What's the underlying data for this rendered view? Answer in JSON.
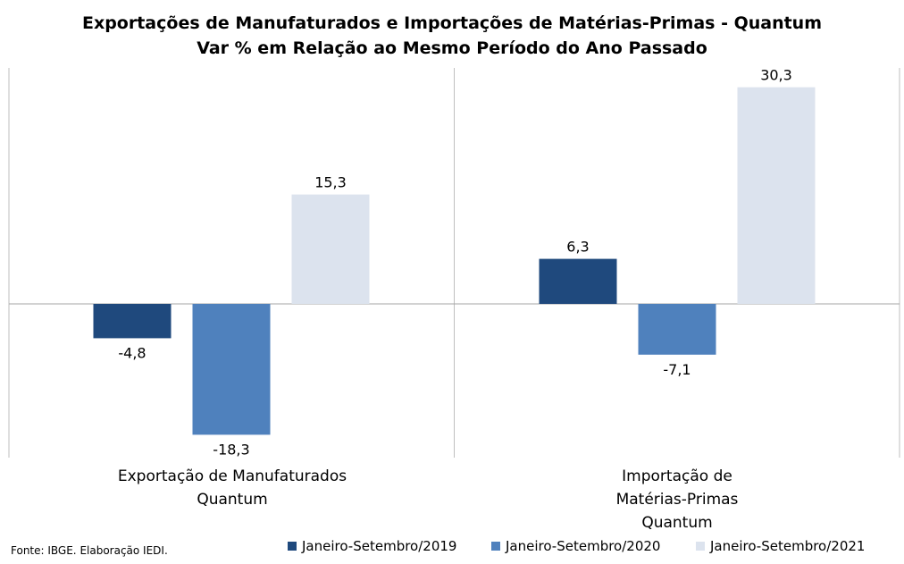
{
  "chart_data": {
    "type": "bar",
    "title_lines": [
      "Exportações de Manufaturados e Importações de Matérias-Primas - Quantum",
      "Var % em Relação ao Mesmo Período do Ano Passado"
    ],
    "categories": [
      "Exportação de Manufaturados\nQuantum",
      "Importação de\nMatérias-Primas\nQuantum"
    ],
    "series": [
      {
        "name": "Janeiro-Setembro/2019",
        "color": "#1f497d",
        "values": [
          -4.8,
          6.3
        ],
        "labels": [
          "-4,8",
          "6,3"
        ]
      },
      {
        "name": "Janeiro-Setembro/2020",
        "color": "#4f81bd",
        "values": [
          -18.3,
          -7.1
        ],
        "labels": [
          "-18,3",
          "-7,1"
        ]
      },
      {
        "name": "Janeiro-Setembro/2021",
        "color": "#dce3ee",
        "values": [
          15.3,
          30.3
        ],
        "labels": [
          "15,3",
          "30,3"
        ]
      }
    ],
    "ylim": [
      -22,
      33
    ],
    "grid": false,
    "legend_position": "bottom"
  },
  "source_note": "Fonte: IBGE. Elaboração IEDI."
}
